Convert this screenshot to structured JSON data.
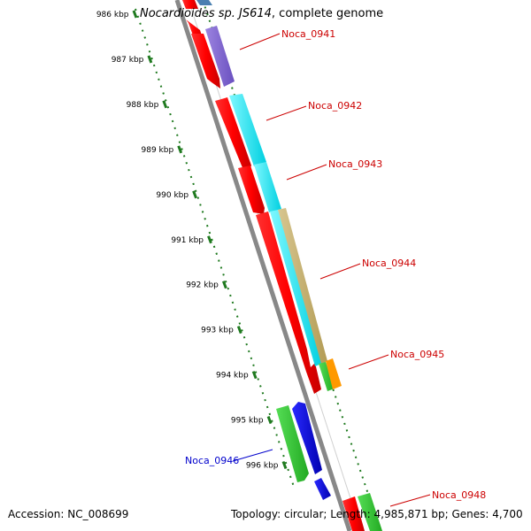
{
  "title": {
    "organism": "Nocardioides sp. JS614",
    "suffix": ", complete genome"
  },
  "footer": {
    "accession": "Accession: NC_008699",
    "summary": "Topology: circular; Length: 4,985,871 bp; Genes: 4,700"
  },
  "ruler": {
    "unit": "kbp",
    "ticks": [
      "986 kbp",
      "987 kbp",
      "988 kbp",
      "989 kbp",
      "990 kbp",
      "991 kbp",
      "992 kbp",
      "993 kbp",
      "994 kbp",
      "995 kbp",
      "996 kbp"
    ]
  },
  "genes": [
    {
      "label": "Noca_0941",
      "color": "#cc0000"
    },
    {
      "label": "Noca_0942",
      "color": "#cc0000"
    },
    {
      "label": "Noca_0943",
      "color": "#cc0000"
    },
    {
      "label": "Noca_0944",
      "color": "#cc0000"
    },
    {
      "label": "Noca_0945",
      "color": "#cc0000"
    },
    {
      "label": "Noca_0946",
      "color": "#0000cc"
    },
    {
      "label": "Noca_0948",
      "color": "#cc0000"
    }
  ],
  "colors": {
    "backbone": "#888888",
    "tick": "#1f7a1f",
    "cds": "#ff0000",
    "purple": "#8a6ad0",
    "cyan": "#00e5ee",
    "tan": "#c8b46e",
    "orange": "#ff9900",
    "green": "#33cc33",
    "blue": "#0000dd",
    "steelblue": "#4a7fb0"
  }
}
